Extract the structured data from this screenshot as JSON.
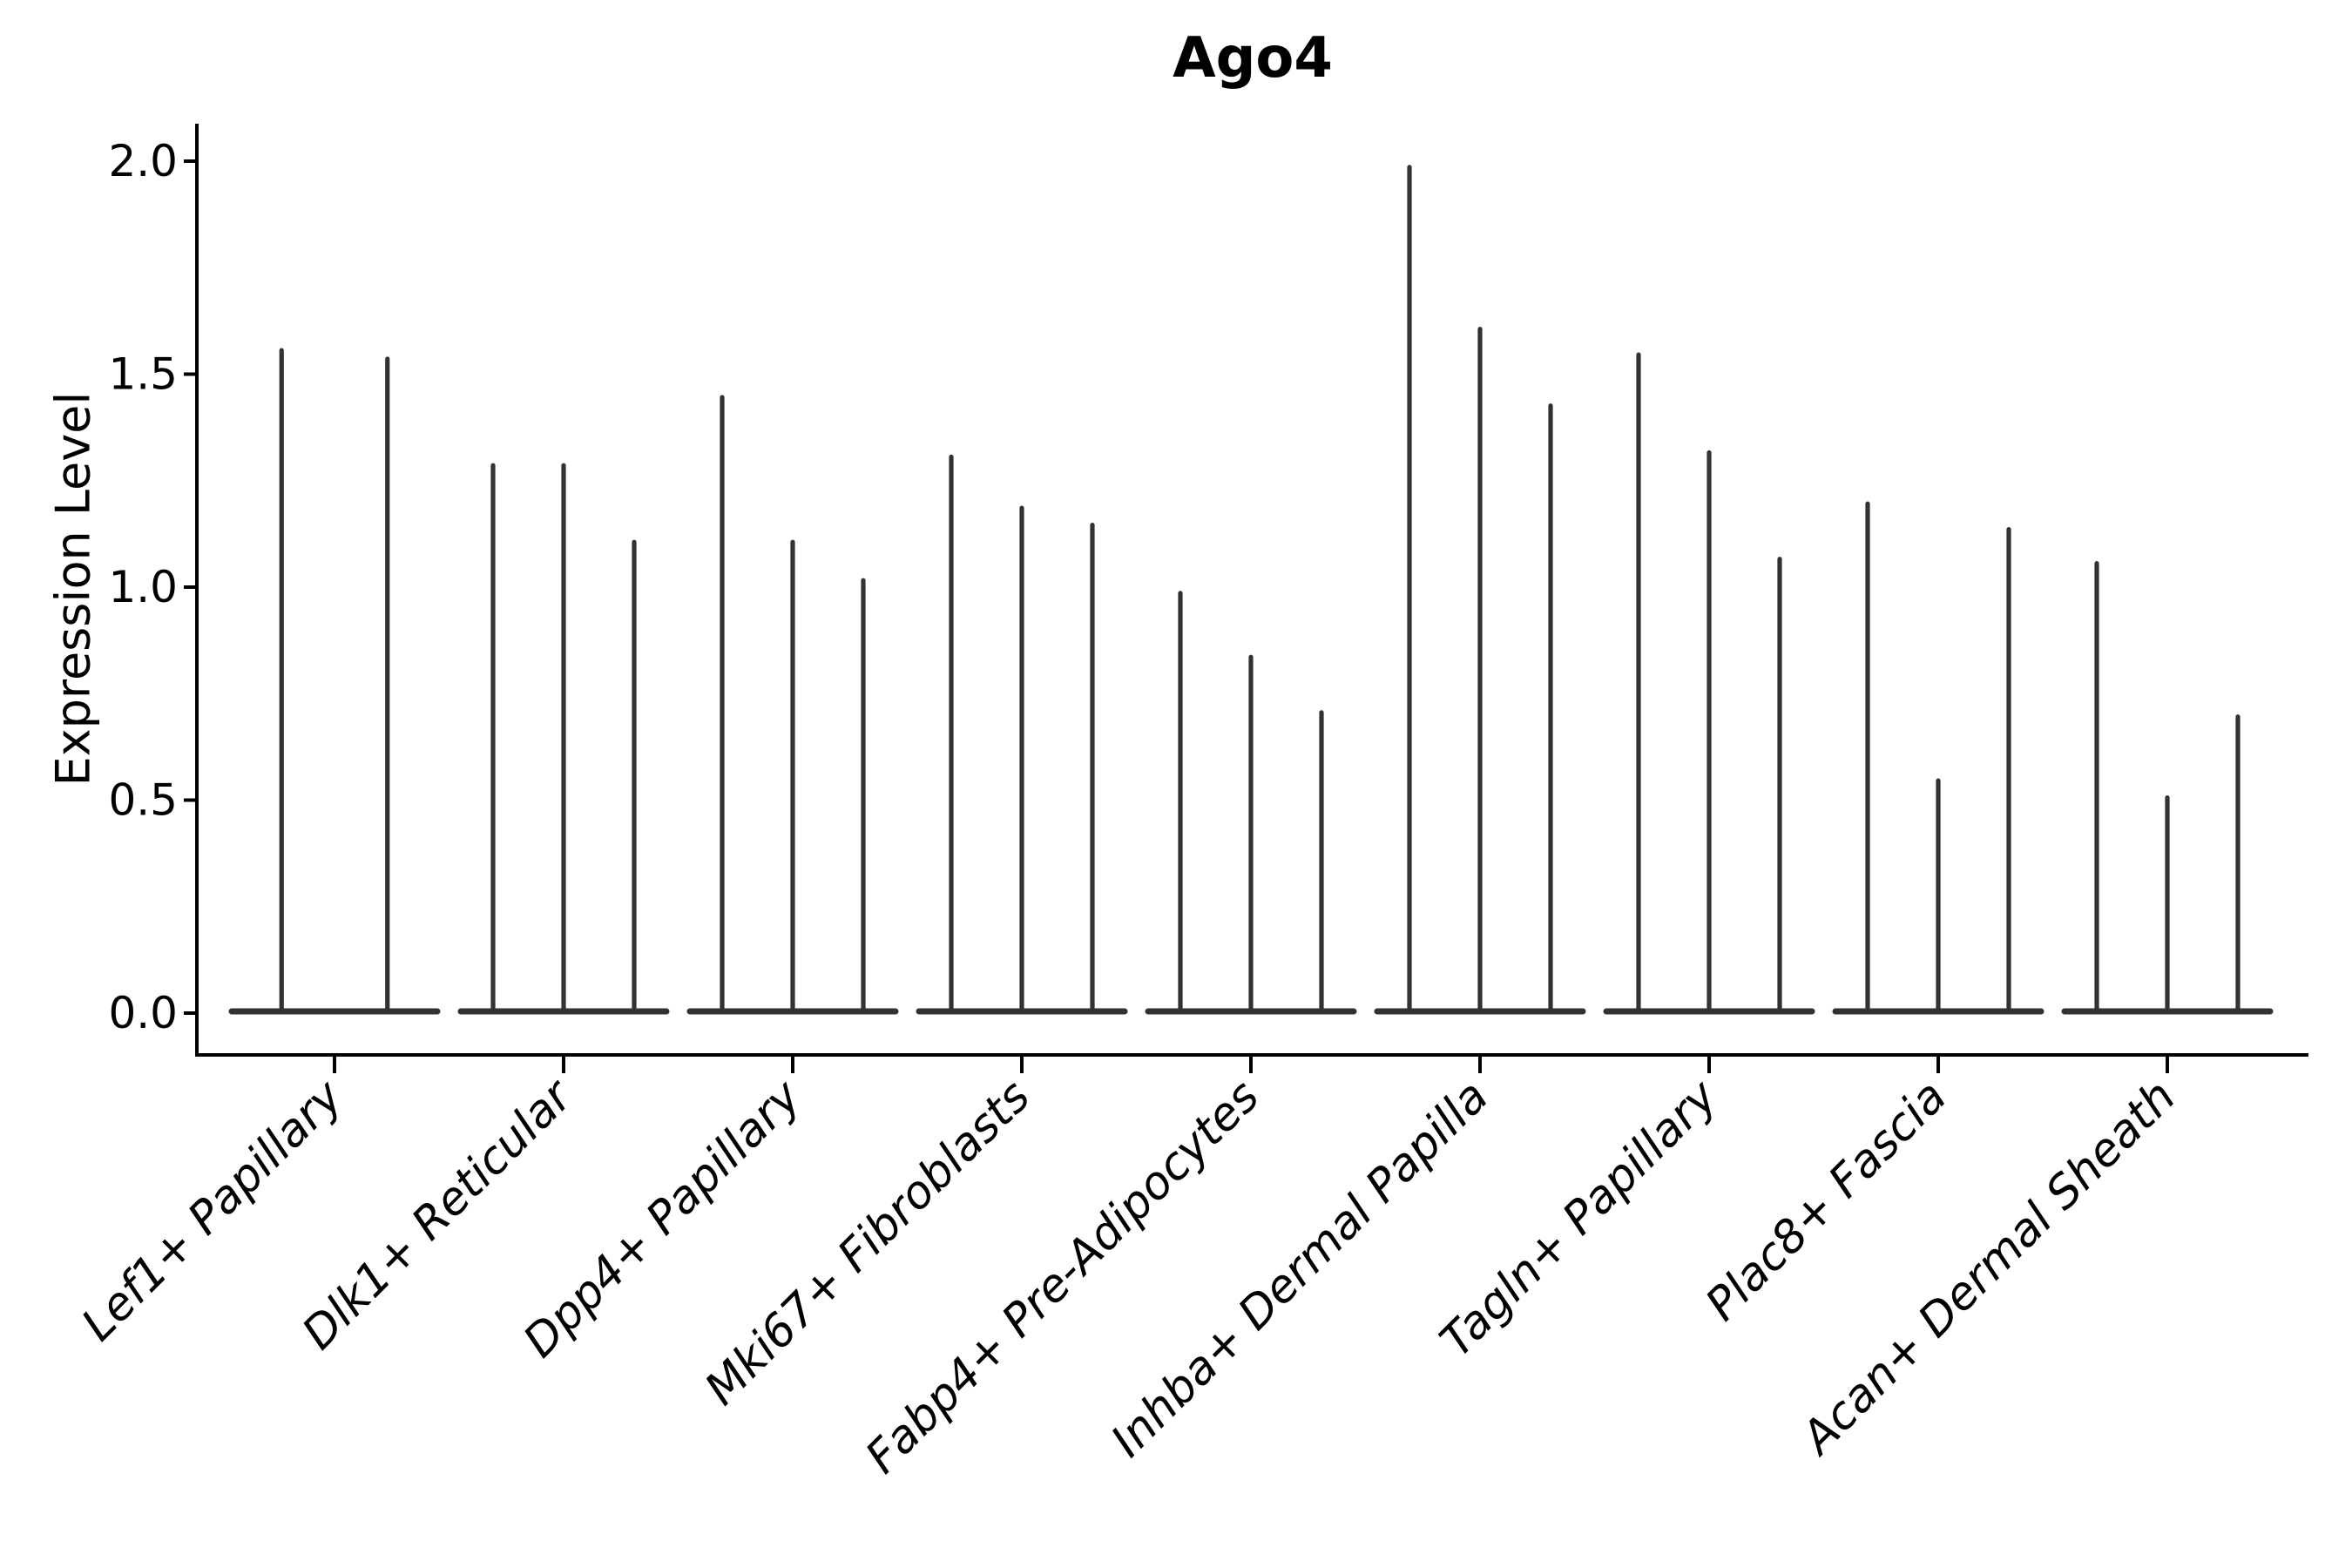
{
  "chart_data": {
    "type": "violin",
    "title": "Ago4",
    "ylabel": "Expression Level",
    "xlabel": "",
    "ylim": [
      0.0,
      2.0
    ],
    "yticks": [
      0.0,
      0.5,
      1.0,
      1.5,
      2.0
    ],
    "ytick_labels": [
      "0.0",
      "0.5",
      "1.0",
      "1.5",
      "2.0"
    ],
    "grid": false,
    "legend": "none",
    "violin_color": "#323232",
    "axis_color": "#000000",
    "description": "Needle-thin violins of expression level per cell-type group; each violin is a flat density bulk at 0 with a thin spike to its maximum value",
    "categories": [
      "Lef1+ Papillary",
      "Dlk1+ Reticular",
      "Dpp4+ Papillary",
      "Mki67+ Fibroblasts",
      "Fabp4+ Pre-Adipocytes",
      "Inhba+ Dermal Papilla",
      "Tagln+ Papillary",
      "Plac8+ Fascia",
      "Acan+ Dermal Sheath"
    ],
    "groups": [
      {
        "category": "Lef1+ Papillary",
        "violin_maxima": [
          1.56,
          1.54
        ]
      },
      {
        "category": "Dlk1+ Reticular",
        "violin_maxima": [
          1.29,
          1.29,
          1.11
        ]
      },
      {
        "category": "Dpp4+ Papillary",
        "violin_maxima": [
          1.45,
          1.11,
          1.02
        ]
      },
      {
        "category": "Mki67+ Fibroblasts",
        "violin_maxima": [
          1.31,
          1.19,
          1.15
        ]
      },
      {
        "category": "Fabp4+ Pre-Adipocytes",
        "violin_maxima": [
          0.99,
          0.84,
          0.71
        ]
      },
      {
        "category": "Inhba+ Dermal Papilla",
        "violin_maxima": [
          1.99,
          1.61,
          1.43
        ]
      },
      {
        "category": "Tagln+ Papillary",
        "violin_maxima": [
          1.55,
          1.32,
          1.07
        ]
      },
      {
        "category": "Plac8+ Fascia",
        "violin_maxima": [
          1.2,
          0.55,
          1.14
        ]
      },
      {
        "category": "Acan+ Dermal Sheath",
        "violin_maxima": [
          1.06,
          0.51,
          0.7
        ]
      }
    ]
  }
}
